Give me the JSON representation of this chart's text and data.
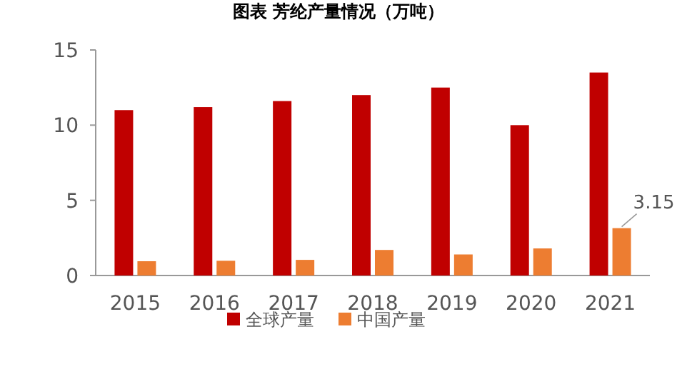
{
  "chart_data": {
    "type": "bar",
    "title": "图表 芳纶产量情况（万吨）",
    "categories": [
      "2015",
      "2016",
      "2017",
      "2018",
      "2019",
      "2020",
      "2021"
    ],
    "series": [
      {
        "name": "全球产量",
        "color": "#c00000",
        "values": [
          11.0,
          11.2,
          11.6,
          12.0,
          12.5,
          10.0,
          13.5
        ]
      },
      {
        "name": "中国产量",
        "color": "#ed7d31",
        "values": [
          0.95,
          0.98,
          1.04,
          1.7,
          1.4,
          1.8,
          3.15
        ],
        "value_labels": [
          null,
          null,
          null,
          null,
          null,
          null,
          "3.15"
        ]
      }
    ],
    "ylim": [
      0,
      15
    ],
    "yticks": [
      0,
      5,
      10,
      15
    ],
    "grid": false,
    "legend": "bottom"
  }
}
